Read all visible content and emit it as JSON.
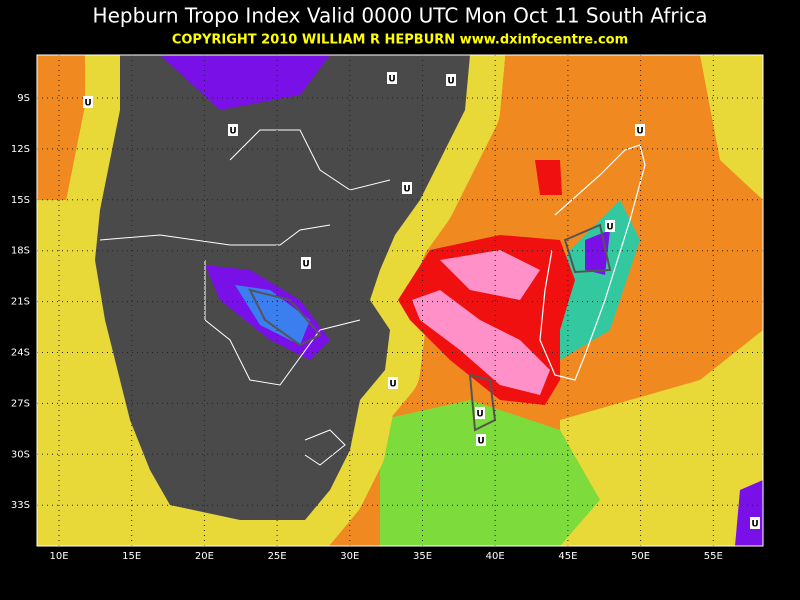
{
  "header": {
    "title": "Hepburn Tropo Index Valid 0000 UTC Mon Oct 11 South Africa",
    "copyright": "COPYRIGHT 2010   WILLIAM R HEPBURN   www.dxinfocentre.com"
  },
  "map": {
    "lat_labels": [
      "9S",
      "12S",
      "15S",
      "18S",
      "21S",
      "24S",
      "27S",
      "30S",
      "33S"
    ],
    "lon_labels": [
      "10E",
      "15E",
      "20E",
      "25E",
      "30E",
      "35E",
      "40E",
      "45E",
      "50E",
      "55E"
    ],
    "markers": [
      "U",
      "U",
      "U",
      "U",
      "U",
      "U",
      "U",
      "U",
      "U",
      "U",
      "U",
      "U"
    ]
  }
}
